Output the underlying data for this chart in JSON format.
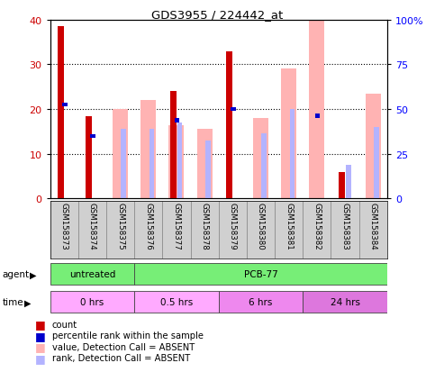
{
  "title": "GDS3955 / 224442_at",
  "samples": [
    "GSM158373",
    "GSM158374",
    "GSM158375",
    "GSM158376",
    "GSM158377",
    "GSM158378",
    "GSM158379",
    "GSM158380",
    "GSM158381",
    "GSM158382",
    "GSM158383",
    "GSM158384"
  ],
  "count_values": [
    38.5,
    18.5,
    null,
    null,
    24.0,
    null,
    33.0,
    null,
    null,
    null,
    6.0,
    null
  ],
  "percentile_rank": [
    21.0,
    14.0,
    null,
    null,
    17.5,
    null,
    20.0,
    null,
    null,
    18.5,
    null,
    null
  ],
  "absent_value": [
    null,
    null,
    20.0,
    22.0,
    16.5,
    15.5,
    null,
    18.0,
    29.0,
    40.0,
    null,
    23.5
  ],
  "absent_rank": [
    null,
    null,
    15.5,
    15.5,
    17.0,
    13.0,
    null,
    14.5,
    20.0,
    null,
    7.5,
    16.0
  ],
  "ylim_left": [
    0,
    40
  ],
  "yticks_left": [
    0,
    10,
    20,
    30,
    40
  ],
  "ytick_labels_right": [
    "0",
    "25",
    "50",
    "75",
    "100%"
  ],
  "color_count": "#cc0000",
  "color_percentile": "#0000cc",
  "color_absent_value": "#ffb3b3",
  "color_absent_rank": "#b3b3ff",
  "bg_color": "#d0d0d0",
  "plot_bg": "#ffffff",
  "agent_groups": [
    {
      "label": "untreated",
      "start": 0,
      "end": 3,
      "color": "#77ee77"
    },
    {
      "label": "PCB-77",
      "start": 3,
      "end": 12,
      "color": "#77ee77"
    }
  ],
  "time_groups": [
    {
      "label": "0 hrs",
      "start": 0,
      "end": 3,
      "color": "#ffaaff"
    },
    {
      "label": "0.5 hrs",
      "start": 3,
      "end": 6,
      "color": "#ffaaff"
    },
    {
      "label": "6 hrs",
      "start": 6,
      "end": 9,
      "color": "#ee88ee"
    },
    {
      "label": "24 hrs",
      "start": 9,
      "end": 12,
      "color": "#dd77dd"
    }
  ]
}
